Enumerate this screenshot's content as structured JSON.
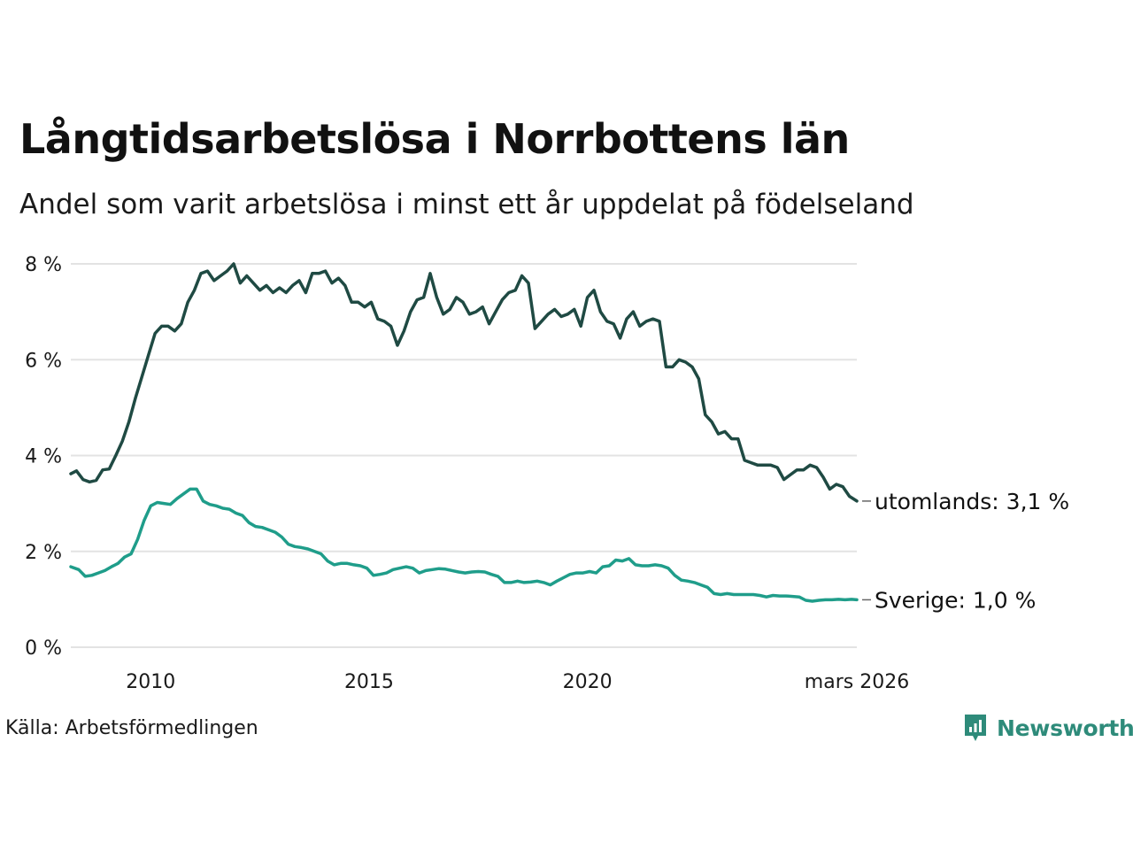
{
  "title": "Långtidsarbetslösa i Norrbottens län",
  "subtitle": "Andel som varit arbetslösa i minst ett år uppdelat på födelseland",
  "source": "Källa: Arbetsförmedlingen",
  "brand": {
    "name": "Newsworthy",
    "icon": "newsworthy-logo-icon",
    "color": "#2e8b7a"
  },
  "chart_data": {
    "type": "line",
    "title": "Långtidsarbetslösa i Norrbottens län",
    "xlabel": "",
    "ylabel": "",
    "xlim": [
      2008.17,
      2026.17
    ],
    "ylim": [
      0,
      8
    ],
    "grid": true,
    "y_ticks": [
      {
        "value": 0,
        "label": "0 %"
      },
      {
        "value": 2,
        "label": "2 %"
      },
      {
        "value": 4,
        "label": "4 %"
      },
      {
        "value": 6,
        "label": "6 %"
      },
      {
        "value": 8,
        "label": "8 %"
      }
    ],
    "x_ticks": [
      {
        "value": 2010,
        "label": "2010"
      },
      {
        "value": 2015,
        "label": "2015"
      },
      {
        "value": 2020,
        "label": "2020"
      },
      {
        "value": 2026.17,
        "label": "mars 2026"
      }
    ],
    "series": [
      {
        "name": "utomlands",
        "label": "utomlands: 3,1 %",
        "color": "#1f4a43",
        "points": [
          [
            2008.17,
            3.62
          ],
          [
            2008.3,
            3.68
          ],
          [
            2008.45,
            3.5
          ],
          [
            2008.6,
            3.45
          ],
          [
            2008.75,
            3.48
          ],
          [
            2008.9,
            3.7
          ],
          [
            2009.05,
            3.72
          ],
          [
            2009.2,
            4.0
          ],
          [
            2009.35,
            4.3
          ],
          [
            2009.5,
            4.7
          ],
          [
            2009.65,
            5.2
          ],
          [
            2009.8,
            5.65
          ],
          [
            2009.95,
            6.1
          ],
          [
            2010.1,
            6.55
          ],
          [
            2010.25,
            6.7
          ],
          [
            2010.4,
            6.7
          ],
          [
            2010.55,
            6.6
          ],
          [
            2010.7,
            6.75
          ],
          [
            2010.85,
            7.2
          ],
          [
            2011.0,
            7.45
          ],
          [
            2011.15,
            7.8
          ],
          [
            2011.3,
            7.85
          ],
          [
            2011.45,
            7.65
          ],
          [
            2011.6,
            7.75
          ],
          [
            2011.75,
            7.85
          ],
          [
            2011.9,
            8.0
          ],
          [
            2012.05,
            7.6
          ],
          [
            2012.2,
            7.75
          ],
          [
            2012.35,
            7.6
          ],
          [
            2012.5,
            7.45
          ],
          [
            2012.65,
            7.55
          ],
          [
            2012.8,
            7.4
          ],
          [
            2012.95,
            7.5
          ],
          [
            2013.1,
            7.4
          ],
          [
            2013.25,
            7.55
          ],
          [
            2013.4,
            7.65
          ],
          [
            2013.55,
            7.4
          ],
          [
            2013.7,
            7.8
          ],
          [
            2013.85,
            7.8
          ],
          [
            2014.0,
            7.85
          ],
          [
            2014.15,
            7.6
          ],
          [
            2014.3,
            7.7
          ],
          [
            2014.45,
            7.55
          ],
          [
            2014.6,
            7.2
          ],
          [
            2014.75,
            7.2
          ],
          [
            2014.9,
            7.1
          ],
          [
            2015.05,
            7.2
          ],
          [
            2015.2,
            6.85
          ],
          [
            2015.35,
            6.8
          ],
          [
            2015.5,
            6.7
          ],
          [
            2015.65,
            6.3
          ],
          [
            2015.8,
            6.6
          ],
          [
            2015.95,
            7.0
          ],
          [
            2016.1,
            7.25
          ],
          [
            2016.25,
            7.3
          ],
          [
            2016.4,
            7.8
          ],
          [
            2016.55,
            7.3
          ],
          [
            2016.7,
            6.95
          ],
          [
            2016.85,
            7.05
          ],
          [
            2017.0,
            7.3
          ],
          [
            2017.15,
            7.2
          ],
          [
            2017.3,
            6.95
          ],
          [
            2017.45,
            7.0
          ],
          [
            2017.6,
            7.1
          ],
          [
            2017.75,
            6.75
          ],
          [
            2017.9,
            7.0
          ],
          [
            2018.05,
            7.25
          ],
          [
            2018.2,
            7.4
          ],
          [
            2018.35,
            7.45
          ],
          [
            2018.5,
            7.75
          ],
          [
            2018.65,
            7.6
          ],
          [
            2018.8,
            6.65
          ],
          [
            2018.95,
            6.8
          ],
          [
            2019.1,
            6.95
          ],
          [
            2019.25,
            7.05
          ],
          [
            2019.4,
            6.9
          ],
          [
            2019.55,
            6.95
          ],
          [
            2019.7,
            7.05
          ],
          [
            2019.85,
            6.7
          ],
          [
            2020.0,
            7.3
          ],
          [
            2020.15,
            7.45
          ],
          [
            2020.3,
            7.0
          ],
          [
            2020.45,
            6.8
          ],
          [
            2020.6,
            6.75
          ],
          [
            2020.75,
            6.45
          ],
          [
            2020.9,
            6.85
          ],
          [
            2021.05,
            7.0
          ],
          [
            2021.2,
            6.7
          ],
          [
            2021.35,
            6.8
          ],
          [
            2021.5,
            6.85
          ],
          [
            2021.65,
            6.8
          ],
          [
            2021.8,
            5.85
          ],
          [
            2021.95,
            5.85
          ],
          [
            2022.1,
            6.0
          ],
          [
            2022.25,
            5.95
          ],
          [
            2022.4,
            5.85
          ],
          [
            2022.55,
            5.6
          ],
          [
            2022.7,
            4.85
          ],
          [
            2022.85,
            4.7
          ],
          [
            2023.0,
            4.45
          ],
          [
            2023.15,
            4.5
          ],
          [
            2023.3,
            4.35
          ],
          [
            2023.45,
            4.35
          ],
          [
            2023.6,
            3.9
          ],
          [
            2023.75,
            3.85
          ],
          [
            2023.9,
            3.8
          ],
          [
            2024.05,
            3.8
          ],
          [
            2024.2,
            3.8
          ],
          [
            2024.35,
            3.75
          ],
          [
            2024.5,
            3.5
          ],
          [
            2024.65,
            3.6
          ],
          [
            2024.8,
            3.7
          ],
          [
            2024.95,
            3.7
          ],
          [
            2025.1,
            3.8
          ],
          [
            2025.25,
            3.75
          ],
          [
            2025.4,
            3.55
          ],
          [
            2025.55,
            3.3
          ],
          [
            2025.7,
            3.4
          ],
          [
            2025.85,
            3.35
          ],
          [
            2026.0,
            3.15
          ],
          [
            2026.17,
            3.05
          ]
        ]
      },
      {
        "name": "Sverige",
        "label": "Sverige: 1,0 %",
        "color": "#1f9d8a",
        "points": [
          [
            2008.17,
            1.68
          ],
          [
            2008.35,
            1.62
          ],
          [
            2008.5,
            1.48
          ],
          [
            2008.65,
            1.5
          ],
          [
            2008.8,
            1.55
          ],
          [
            2008.95,
            1.6
          ],
          [
            2009.1,
            1.68
          ],
          [
            2009.25,
            1.75
          ],
          [
            2009.4,
            1.88
          ],
          [
            2009.55,
            1.95
          ],
          [
            2009.7,
            2.25
          ],
          [
            2009.85,
            2.65
          ],
          [
            2010.0,
            2.95
          ],
          [
            2010.15,
            3.02
          ],
          [
            2010.3,
            3.0
          ],
          [
            2010.45,
            2.98
          ],
          [
            2010.6,
            3.1
          ],
          [
            2010.75,
            3.2
          ],
          [
            2010.9,
            3.3
          ],
          [
            2011.05,
            3.3
          ],
          [
            2011.2,
            3.05
          ],
          [
            2011.35,
            2.98
          ],
          [
            2011.5,
            2.95
          ],
          [
            2011.65,
            2.9
          ],
          [
            2011.8,
            2.88
          ],
          [
            2011.95,
            2.8
          ],
          [
            2012.1,
            2.75
          ],
          [
            2012.25,
            2.6
          ],
          [
            2012.4,
            2.52
          ],
          [
            2012.55,
            2.5
          ],
          [
            2012.7,
            2.45
          ],
          [
            2012.85,
            2.4
          ],
          [
            2013.0,
            2.3
          ],
          [
            2013.15,
            2.15
          ],
          [
            2013.3,
            2.1
          ],
          [
            2013.45,
            2.08
          ],
          [
            2013.6,
            2.05
          ],
          [
            2013.75,
            2.0
          ],
          [
            2013.9,
            1.95
          ],
          [
            2014.05,
            1.8
          ],
          [
            2014.2,
            1.72
          ],
          [
            2014.35,
            1.75
          ],
          [
            2014.5,
            1.75
          ],
          [
            2014.65,
            1.72
          ],
          [
            2014.8,
            1.7
          ],
          [
            2014.95,
            1.65
          ],
          [
            2015.1,
            1.5
          ],
          [
            2015.25,
            1.52
          ],
          [
            2015.4,
            1.55
          ],
          [
            2015.55,
            1.62
          ],
          [
            2015.7,
            1.65
          ],
          [
            2015.85,
            1.68
          ],
          [
            2016.0,
            1.65
          ],
          [
            2016.15,
            1.55
          ],
          [
            2016.3,
            1.6
          ],
          [
            2016.45,
            1.62
          ],
          [
            2016.6,
            1.64
          ],
          [
            2016.75,
            1.63
          ],
          [
            2016.9,
            1.6
          ],
          [
            2017.05,
            1.57
          ],
          [
            2017.2,
            1.55
          ],
          [
            2017.35,
            1.57
          ],
          [
            2017.5,
            1.58
          ],
          [
            2017.65,
            1.57
          ],
          [
            2017.8,
            1.52
          ],
          [
            2017.95,
            1.48
          ],
          [
            2018.1,
            1.35
          ],
          [
            2018.25,
            1.35
          ],
          [
            2018.4,
            1.38
          ],
          [
            2018.55,
            1.35
          ],
          [
            2018.7,
            1.36
          ],
          [
            2018.85,
            1.38
          ],
          [
            2019.0,
            1.35
          ],
          [
            2019.15,
            1.3
          ],
          [
            2019.3,
            1.38
          ],
          [
            2019.45,
            1.45
          ],
          [
            2019.6,
            1.52
          ],
          [
            2019.75,
            1.55
          ],
          [
            2019.9,
            1.55
          ],
          [
            2020.05,
            1.58
          ],
          [
            2020.2,
            1.55
          ],
          [
            2020.35,
            1.68
          ],
          [
            2020.5,
            1.7
          ],
          [
            2020.65,
            1.82
          ],
          [
            2020.8,
            1.8
          ],
          [
            2020.95,
            1.85
          ],
          [
            2021.1,
            1.72
          ],
          [
            2021.25,
            1.7
          ],
          [
            2021.4,
            1.7
          ],
          [
            2021.55,
            1.72
          ],
          [
            2021.7,
            1.7
          ],
          [
            2021.85,
            1.65
          ],
          [
            2022.0,
            1.5
          ],
          [
            2022.15,
            1.4
          ],
          [
            2022.3,
            1.38
          ],
          [
            2022.45,
            1.35
          ],
          [
            2022.6,
            1.3
          ],
          [
            2022.75,
            1.25
          ],
          [
            2022.9,
            1.12
          ],
          [
            2023.05,
            1.1
          ],
          [
            2023.2,
            1.12
          ],
          [
            2023.35,
            1.1
          ],
          [
            2023.5,
            1.1
          ],
          [
            2023.65,
            1.1
          ],
          [
            2023.8,
            1.1
          ],
          [
            2023.95,
            1.08
          ],
          [
            2024.1,
            1.05
          ],
          [
            2024.25,
            1.08
          ],
          [
            2024.4,
            1.07
          ],
          [
            2024.55,
            1.07
          ],
          [
            2024.7,
            1.06
          ],
          [
            2024.85,
            1.05
          ],
          [
            2025.0,
            0.98
          ],
          [
            2025.15,
            0.96
          ],
          [
            2025.3,
            0.98
          ],
          [
            2025.45,
            0.99
          ],
          [
            2025.6,
            0.99
          ],
          [
            2025.75,
            1.0
          ],
          [
            2025.9,
            0.99
          ],
          [
            2026.05,
            1.0
          ],
          [
            2026.17,
            0.99
          ]
        ]
      }
    ]
  }
}
